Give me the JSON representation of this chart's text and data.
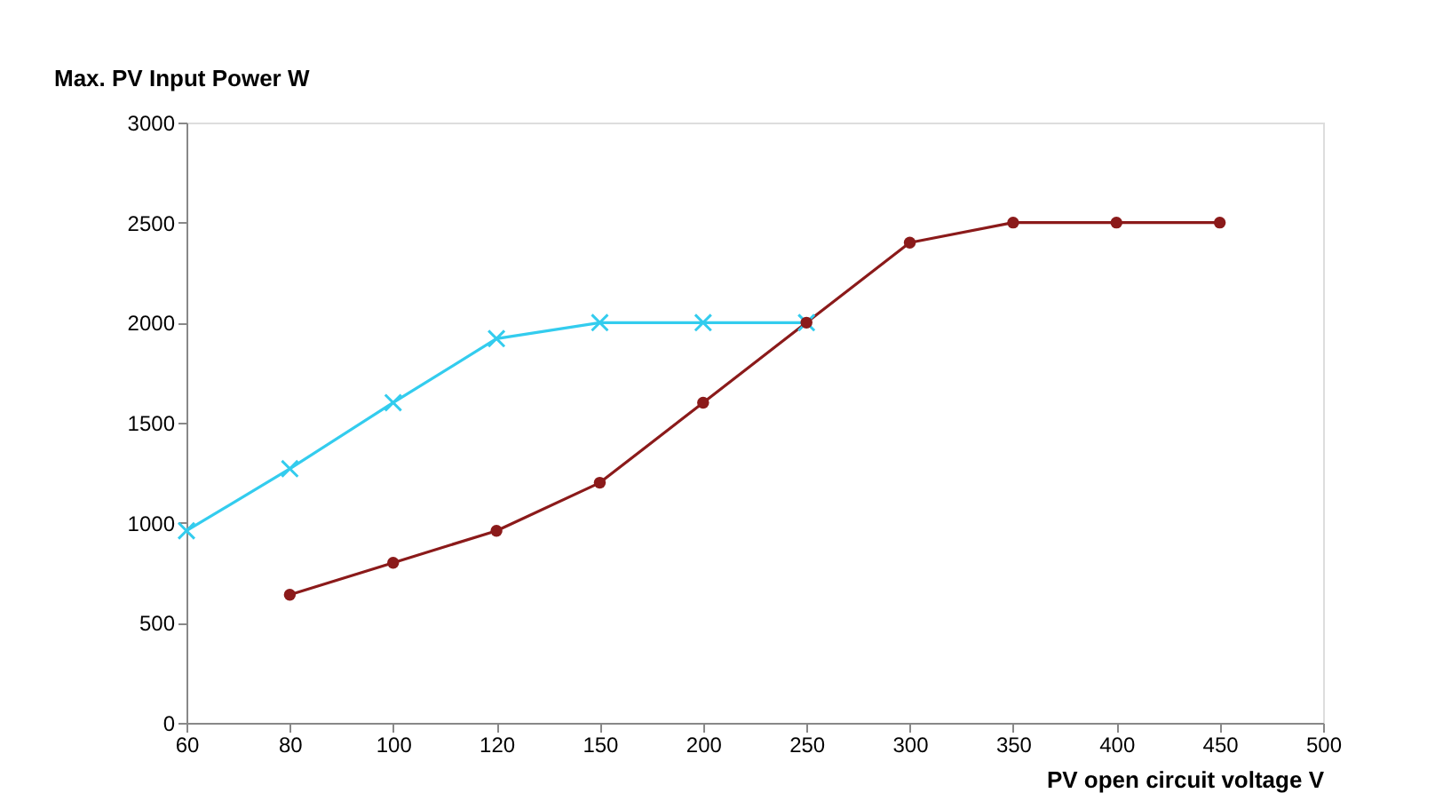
{
  "chart_data": {
    "type": "line",
    "ylabel": "Max. PV Input Power W",
    "xlabel": "PV open circuit voltage V",
    "categories": [
      "60",
      "80",
      "100",
      "120",
      "150",
      "200",
      "250",
      "300",
      "350",
      "400",
      "450",
      "500"
    ],
    "ylim": [
      0,
      3000
    ],
    "yticks": [
      0,
      500,
      1000,
      1500,
      2000,
      2500,
      3000
    ],
    "grid": false,
    "legend": false,
    "line_style": "solid",
    "series": [
      {
        "color": "#8b1a1a",
        "marker": "circle",
        "values": [
          null,
          640,
          800,
          960,
          1200,
          1600,
          2000,
          2400,
          2500,
          2500,
          2500,
          null
        ]
      },
      {
        "color": "#33ccee",
        "marker": "cross",
        "values": [
          960,
          1270,
          1600,
          1920,
          2000,
          2000,
          2000,
          null,
          null,
          null,
          null,
          null
        ]
      }
    ]
  }
}
